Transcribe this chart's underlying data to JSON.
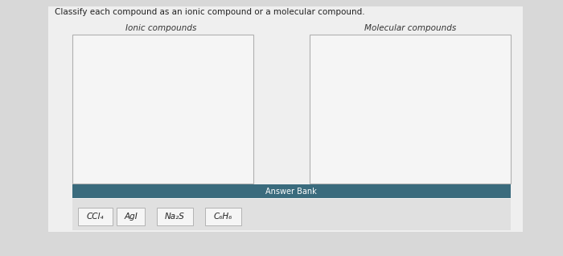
{
  "title": "Classify each compound as an ionic compound or a molecular compound.",
  "title_fontsize": 7.5,
  "title_color": "#222222",
  "bg_color": "#d8d8d8",
  "page_bg": "#efefef",
  "box_bg": "#f5f5f5",
  "box_border": "#b0b0b0",
  "left_label": "Ionic compounds",
  "right_label": "Molecular compounds",
  "label_fontsize": 7.5,
  "label_color": "#333333",
  "answer_bank_label": "Answer Bank",
  "answer_bank_bg": "#3a6b7d",
  "answer_bank_text_color": "#ffffff",
  "answer_bank_fontsize": 7,
  "compounds": [
    "CCl₄",
    "AgI",
    "Na₂S",
    "C₆H₆"
  ],
  "compound_fontsize": 7.5,
  "compound_box_bg": "#f5f5f5",
  "compound_box_border": "#aaaaaa",
  "bottom_strip_bg": "#e0e0e0",
  "white_panel_bg": "#f8f8f8"
}
